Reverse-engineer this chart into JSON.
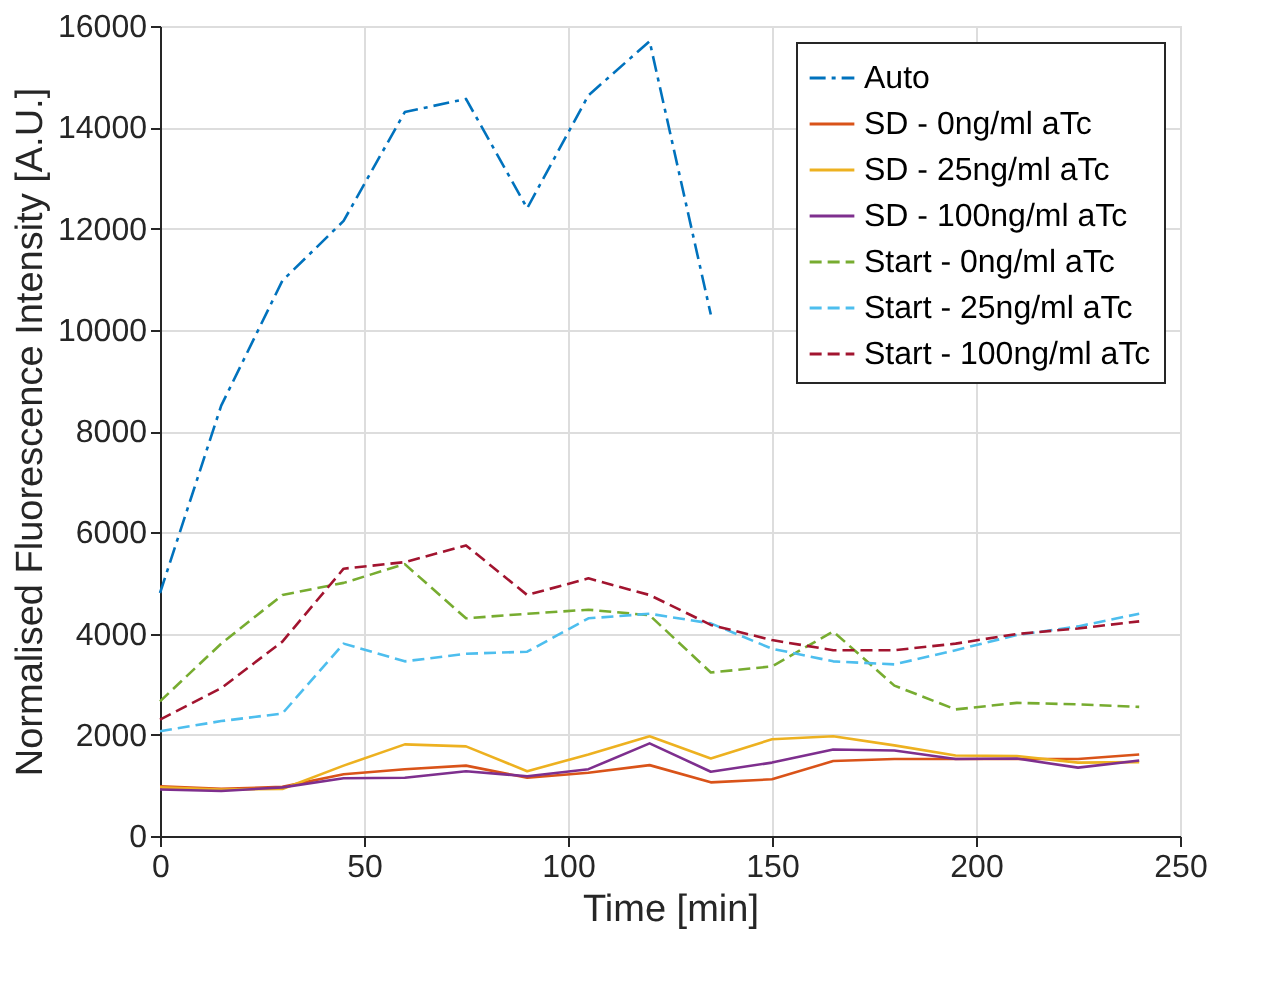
{
  "chart_data": {
    "type": "line",
    "xlabel": "Time [min]",
    "ylabel": "Normalised Fluorescence Intensity [A.U.]",
    "x": [
      0,
      15,
      30,
      45,
      60,
      75,
      90,
      105,
      120,
      135,
      150,
      165,
      180,
      195,
      210,
      225,
      240
    ],
    "xlim": [
      0,
      250
    ],
    "xticks": [
      0,
      50,
      100,
      150,
      200,
      250
    ],
    "ylim": [
      0,
      16000
    ],
    "yticks": [
      0,
      2000,
      4000,
      6000,
      8000,
      10000,
      12000,
      14000,
      16000
    ],
    "grid": true,
    "legend": "top right",
    "marker": "none",
    "series": [
      {
        "name": "Auto",
        "color": "#0072bd",
        "line_style": "dashdot",
        "values": [
          4800,
          8500,
          10970,
          12150,
          14300,
          14560,
          12400,
          14630,
          15700,
          10300,
          null,
          null,
          null,
          null,
          null,
          null,
          null
        ]
      },
      {
        "name": "SD - 0ng/ml aTc",
        "color": "#d95319",
        "line_style": "solid",
        "values": [
          980,
          930,
          970,
          1220,
          1320,
          1390,
          1150,
          1250,
          1400,
          1060,
          1120,
          1480,
          1520,
          1520,
          1520,
          1520,
          1610
        ]
      },
      {
        "name": "SD - 25ng/ml aTc",
        "color": "#edb120",
        "line_style": "solid",
        "values": [
          960,
          920,
          930,
          1390,
          1810,
          1770,
          1280,
          1610,
          1970,
          1530,
          1910,
          1970,
          1790,
          1590,
          1580,
          1450,
          1460
        ]
      },
      {
        "name": "SD - 100ng/ml aTc",
        "color": "#7e2f8e",
        "line_style": "solid",
        "values": [
          920,
          890,
          960,
          1140,
          1150,
          1280,
          1180,
          1320,
          1830,
          1270,
          1450,
          1710,
          1690,
          1520,
          1530,
          1350,
          1490
        ]
      },
      {
        "name": "Start - 0ng/ml aTc",
        "color": "#77ac30",
        "line_style": "dashed",
        "values": [
          2660,
          3800,
          4760,
          5000,
          5370,
          4300,
          4390,
          4470,
          4360,
          3230,
          3350,
          4040,
          2970,
          2500,
          2630,
          2600,
          2550
        ]
      },
      {
        "name": "Start - 25ng/ml aTc",
        "color": "#4dbeee",
        "line_style": "dashed",
        "values": [
          2070,
          2270,
          2420,
          3800,
          3450,
          3600,
          3640,
          4300,
          4390,
          4200,
          3700,
          3450,
          3390,
          3670,
          3970,
          4140,
          4390
        ]
      },
      {
        "name": "Start - 100ng/ml aTc",
        "color": "#a2142f",
        "line_style": "dashed",
        "values": [
          2300,
          2920,
          3840,
          5280,
          5410,
          5740,
          4760,
          5090,
          4760,
          4170,
          3870,
          3670,
          3670,
          3800,
          3990,
          4100,
          4240
        ]
      }
    ]
  }
}
